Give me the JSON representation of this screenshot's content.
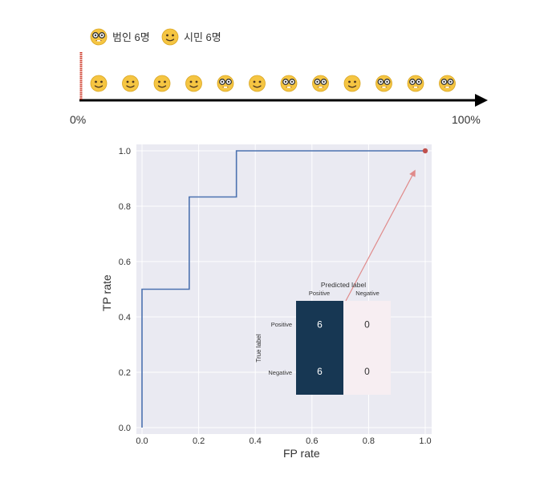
{
  "legend": {
    "criminal_icon": "nerd-face-icon",
    "criminal_label": "범인 6명",
    "citizen_icon": "smiling-face-icon",
    "citizen_label": "시민 6명"
  },
  "threshold_scale": {
    "start_label": "0%",
    "end_label": "100%",
    "threshold_position": 0.0,
    "threshold_color": "#cc3322",
    "sequence": [
      "citizen",
      "citizen",
      "citizen",
      "citizen",
      "criminal",
      "citizen",
      "criminal",
      "criminal",
      "citizen",
      "criminal",
      "criminal",
      "criminal"
    ]
  },
  "chart_data": [
    {
      "type": "line",
      "title": "",
      "xlabel": "FP rate",
      "ylabel": "TP rate",
      "xlim": [
        0.0,
        1.0
      ],
      "ylim": [
        0.0,
        1.0
      ],
      "xticks": [
        "0.0",
        "0.2",
        "0.4",
        "0.6",
        "0.8",
        "1.0"
      ],
      "yticks": [
        "0.0",
        "0.2",
        "0.4",
        "0.6",
        "0.8",
        "1.0"
      ],
      "grid": true,
      "series": [
        {
          "x": [
            0.0,
            0.0,
            0.1667,
            0.1667,
            0.3333,
            0.3333,
            1.0
          ],
          "y": [
            0.0,
            0.5,
            0.5,
            0.8333,
            0.8333,
            1.0,
            1.0
          ],
          "color": "#4c72b0"
        }
      ],
      "highlight_point": {
        "x": 1.0,
        "y": 1.0,
        "color": "#c0504d"
      },
      "arrow_color": "#e08a8a"
    },
    {
      "type": "heatmap",
      "title": "Predicted label",
      "ylabel": "True label",
      "columns": [
        "Positive",
        "Negative"
      ],
      "rows": [
        "Positive",
        "Negative"
      ],
      "values": [
        [
          6,
          0
        ],
        [
          6,
          0
        ]
      ],
      "colors": {
        "high": "#173753",
        "low": "#f7eef2"
      }
    }
  ]
}
